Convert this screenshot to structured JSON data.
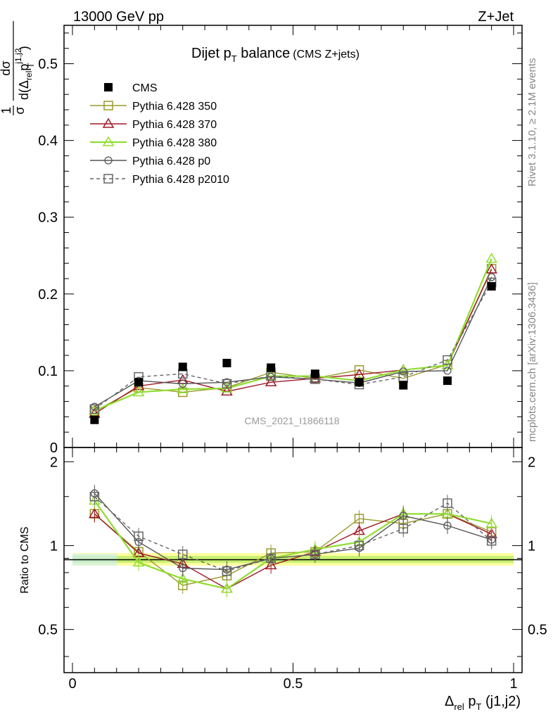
{
  "header": {
    "left": "13000 GeV pp",
    "right": "Z+Jet"
  },
  "plot": {
    "title_main": "Dijet p",
    "title_sub": "T",
    "title_tail": " balance",
    "title_paren": "(CMS Z+jets)",
    "watermark": "CMS_2021_I1866118",
    "side_rivet": "Rivet 3.1.10, ≥ 2.1M events",
    "side_mcplots": "mcplots.cern.ch [arXiv:1306.3436]",
    "ratio_ylabel": "Ratio to CMS",
    "ylabel_frac_num": "1",
    "ylabel_frac_den": "σ",
    "ylabel_dnum": "dσ",
    "ylabel_dden_pre": "d(Δ",
    "ylabel_dden_rel": "rel",
    "ylabel_dden_p": "p",
    "ylabel_dden_T": "T",
    "ylabel_dden_sup": "j1,j2",
    "ylabel_dden_post": ")",
    "xlabel_delta": "Δ",
    "xlabel_rel": "rel",
    "xlabel_p": " p",
    "xlabel_T": "T",
    "xlabel_tail": " (j1,j2)"
  },
  "chart_data": {
    "type": "line",
    "xlim": [
      0,
      1
    ],
    "ylim": [
      0,
      0.55
    ],
    "ratio_ylim": [
      0.35,
      2.25
    ],
    "main_yticks": [
      "0",
      "0.1",
      "0.2",
      "0.3",
      "0.4",
      "0.5"
    ],
    "main_ytick_values": [
      0,
      0.1,
      0.2,
      0.3,
      0.4,
      0.5
    ],
    "ratio_yticks": [
      "0.5",
      "1",
      "2"
    ],
    "ratio_ytick_values": [
      0.5,
      1,
      2
    ],
    "xticks": [
      "0",
      "0.5",
      "1"
    ],
    "xtick_values": [
      0,
      0.5,
      1
    ],
    "x": [
      0.05,
      0.15,
      0.25,
      0.35,
      0.45,
      0.55,
      0.65,
      0.75,
      0.85,
      0.95
    ],
    "series": [
      {
        "name": "CMS",
        "color": "#000000",
        "marker": "filled-square",
        "dash": false,
        "values": [
          0.036,
          0.085,
          0.105,
          0.11,
          0.104,
          0.096,
          0.085,
          0.081,
          0.087,
          0.21
        ],
        "ratio": [
          1,
          1,
          1,
          1,
          1,
          1,
          1,
          1,
          1,
          1
        ]
      },
      {
        "name": "Pythia 6.428 350",
        "color": "#9a9a2a",
        "marker": "open-square",
        "dash": false,
        "values": [
          0.047,
          0.078,
          0.072,
          0.078,
          0.098,
          0.09,
          0.101,
          0.09,
          0.108,
          0.233
        ],
        "ratio": [
          1.3,
          0.95,
          0.72,
          0.78,
          0.94,
          0.95,
          1.25,
          1.2,
          1.3,
          1.12
        ]
      },
      {
        "name": "Pythia 6.428 370",
        "color": "#a01a28",
        "marker": "open-triangle",
        "dash": false,
        "values": [
          0.044,
          0.08,
          0.088,
          0.073,
          0.085,
          0.09,
          0.095,
          0.101,
          0.107,
          0.232
        ],
        "ratio": [
          1.3,
          0.94,
          0.86,
          0.7,
          0.85,
          0.95,
          1.13,
          1.3,
          1.3,
          1.1
        ]
      },
      {
        "name": "Pythia 6.428 380",
        "color": "#90dd30",
        "marker": "open-triangle",
        "dash": false,
        "values": [
          0.048,
          0.072,
          0.076,
          0.077,
          0.093,
          0.093,
          0.087,
          0.101,
          0.107,
          0.246
        ],
        "ratio": [
          1.45,
          0.87,
          0.76,
          0.7,
          0.9,
          0.97,
          1.03,
          1.3,
          1.3,
          1.2
        ]
      },
      {
        "name": "Pythia 6.428 p0",
        "color": "#555555",
        "marker": "open-circle",
        "dash": false,
        "values": [
          0.053,
          0.087,
          0.083,
          0.085,
          0.092,
          0.089,
          0.084,
          0.099,
          0.1,
          0.222
        ],
        "ratio": [
          1.54,
          1.03,
          0.83,
          0.82,
          0.9,
          0.93,
          0.98,
          1.28,
          1.18,
          1.05
        ]
      },
      {
        "name": "Pythia 6.428 p2010",
        "color": "#666666",
        "marker": "open-square",
        "dash": true,
        "values": [
          0.05,
          0.092,
          0.096,
          0.083,
          0.093,
          0.089,
          0.082,
          0.092,
          0.114,
          0.215
        ],
        "ratio": [
          1.5,
          1.08,
          0.93,
          0.81,
          0.9,
          0.93,
          1.0,
          1.15,
          1.42,
          1.04
        ]
      }
    ]
  }
}
